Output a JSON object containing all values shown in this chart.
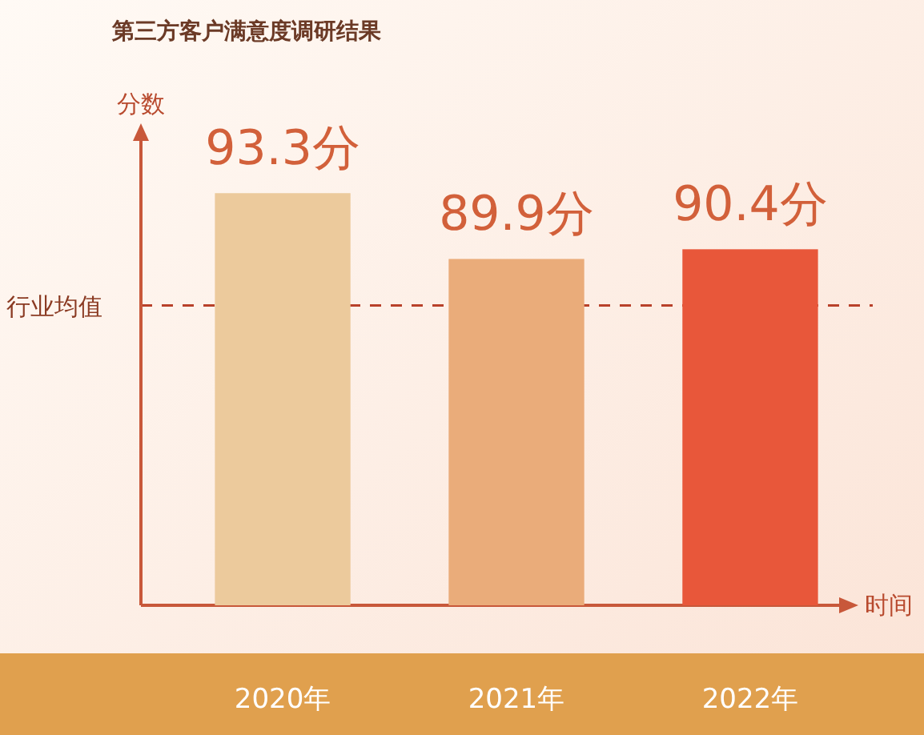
{
  "chart_data": {
    "type": "bar",
    "title": "第三方客户满意度调研结果",
    "ylabel": "分数",
    "xlabel": "时间",
    "categories": [
      "2020年",
      "2021年",
      "2022年"
    ],
    "values": [
      93.3,
      89.9,
      90.4
    ],
    "value_labels": [
      "93.3分",
      "89.9分",
      "90.4分"
    ],
    "colors": [
      "#ecca9c",
      "#eaac7a",
      "#e8573a"
    ],
    "ylim": [
      72,
      96
    ],
    "ref_lines": [
      {
        "axis": "y",
        "value": 87.5,
        "label": "行业均值",
        "color": "#b8412a",
        "line_style": "dashed"
      }
    ]
  }
}
